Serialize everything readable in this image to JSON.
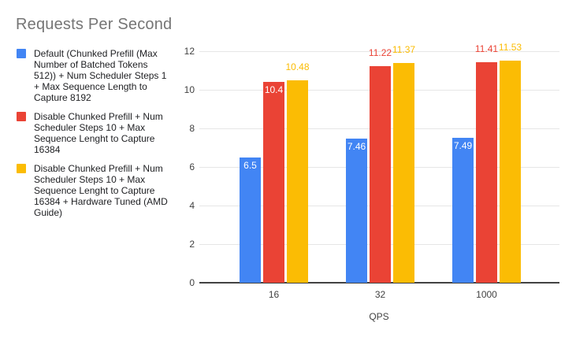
{
  "title": "Requests Per Second",
  "colors": {
    "background": "#FFFFFF",
    "title_text": "#757575",
    "legend_text": "#202124",
    "axis_text": "#424242",
    "gridline": "#E6E6E6",
    "axis_line": "#424242",
    "inside_label_text": "#FFFFFF",
    "series_blue": "#4285F4",
    "series_red": "#EA4335",
    "series_yellow": "#FBBC04"
  },
  "chart_data": {
    "type": "bar",
    "title": "Requests Per Second",
    "xlabel": "QPS",
    "ylabel": "",
    "categories": [
      "16",
      "32",
      "1000"
    ],
    "series": [
      {
        "name": "Default (Chunked Prefill (Max Number of Batched Tokens 512)) + Num Scheduler Steps 1 + Max Sequence Length to Capture 8192",
        "color": "#4285F4",
        "values": [
          6.5,
          7.46,
          7.49
        ],
        "labels": [
          "6.5",
          "7.46",
          "7.49"
        ],
        "label_placement": [
          "inside",
          "inside",
          "inside"
        ],
        "label_color_inside": "#FFFFFF"
      },
      {
        "name": "Disable Chunked Prefill + Num Scheduler Steps 10 + Max Sequence Lenght to Capture 16384",
        "color": "#EA4335",
        "values": [
          10.4,
          11.22,
          11.41
        ],
        "labels": [
          "10.4",
          "11.22",
          "11.41"
        ],
        "label_placement": [
          "inside",
          "above",
          "above"
        ],
        "label_color_inside": "#FFFFFF"
      },
      {
        "name": "Disable Chunked Prefill + Num Scheduler Steps 10 + Max Sequence Lenght to Capture 16384 + Hardware Tuned (AMD Guide)",
        "color": "#FBBC04",
        "values": [
          10.48,
          11.37,
          11.53
        ],
        "labels": [
          "10.48",
          "11.37",
          "11.53"
        ],
        "label_placement": [
          "above",
          "above",
          "above"
        ],
        "label_color_inside": "#FFFFFF"
      }
    ],
    "ylim": [
      0,
      12
    ],
    "yticks": [
      0,
      2,
      4,
      6,
      8,
      10,
      12
    ],
    "grid": true,
    "legend_position": "left"
  }
}
